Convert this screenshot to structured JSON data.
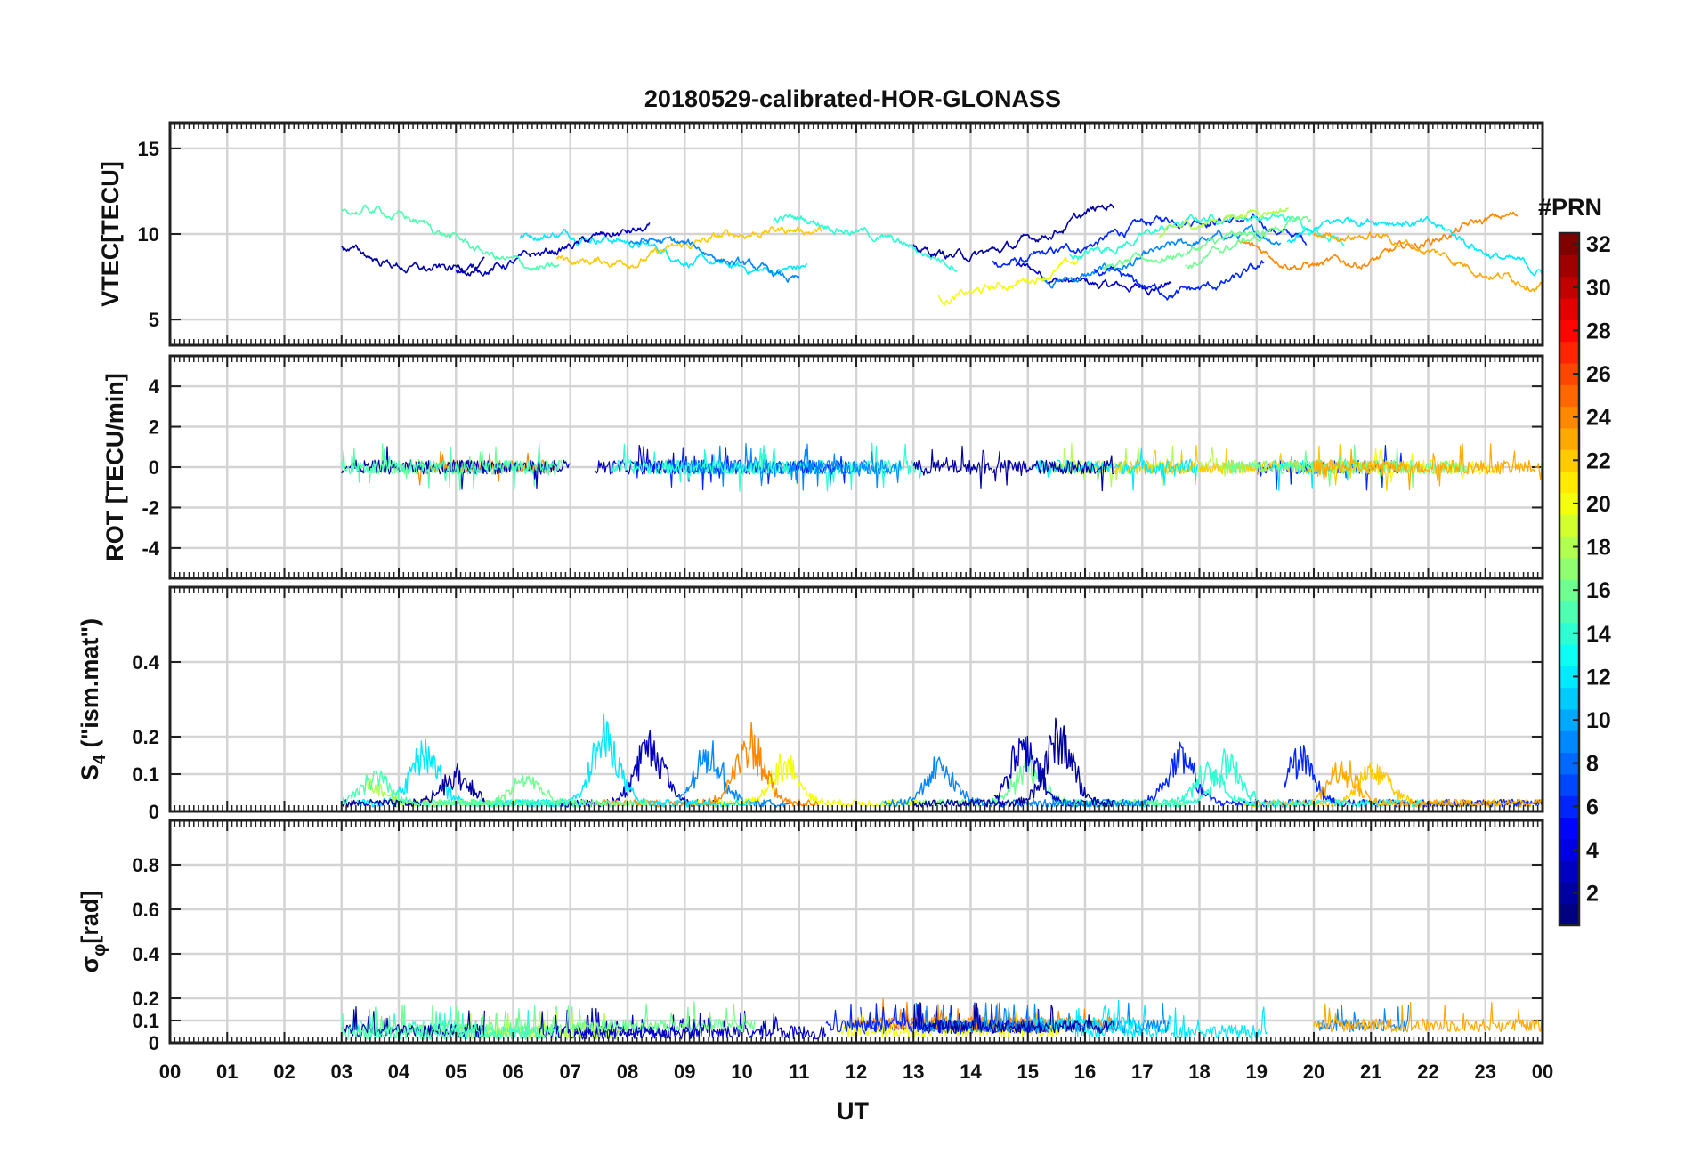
{
  "title": "20180529-calibrated-HOR-GLONASS",
  "xlabel": "UT",
  "x_ticks": [
    "00",
    "01",
    "02",
    "03",
    "04",
    "05",
    "06",
    "07",
    "08",
    "09",
    "10",
    "11",
    "12",
    "13",
    "14",
    "15",
    "16",
    "17",
    "18",
    "19",
    "20",
    "21",
    "22",
    "23",
    "00"
  ],
  "colorbar": {
    "label": "#PRN",
    "ticks": [
      "2",
      "4",
      "6",
      "8",
      "10",
      "12",
      "14",
      "16",
      "18",
      "20",
      "22",
      "24",
      "26",
      "28",
      "30",
      "32"
    ],
    "range": [
      1,
      32
    ],
    "colormap": "jet"
  },
  "chart_data": [
    {
      "type": "line",
      "panel": "vtec",
      "ylabel": "VTEC[TECU]",
      "ylim": [
        3.5,
        16.5
      ],
      "yticks": [
        "5",
        "10",
        "15"
      ],
      "grid": true
    },
    {
      "type": "line",
      "panel": "rot",
      "ylabel": "ROT [TECU/min]",
      "ylim": [
        -5.5,
        5.5
      ],
      "yticks": [
        "-4",
        "-2",
        "0",
        "2",
        "4"
      ],
      "grid": true
    },
    {
      "type": "line",
      "panel": "s4",
      "ylabel": "S4 (\"ism.mat\")",
      "ylabel_main": "S",
      "ylabel_sub": "4",
      "ylabel_rest": " (\"ism.mat\")",
      "ylim": [
        0,
        0.6
      ],
      "yticks": [
        "0",
        "0.1",
        "0.2",
        "0.4"
      ],
      "grid": true
    },
    {
      "type": "line",
      "panel": "sigma",
      "ylabel": "σφ[rad]",
      "ylabel_main": "σ",
      "ylabel_sub": "φ",
      "ylabel_rest": "[rad]",
      "ylim": [
        0,
        1
      ],
      "yticks": [
        "0",
        "0.1",
        "0.2",
        "0.4",
        "0.6",
        "0.8"
      ],
      "grid": true
    }
  ]
}
